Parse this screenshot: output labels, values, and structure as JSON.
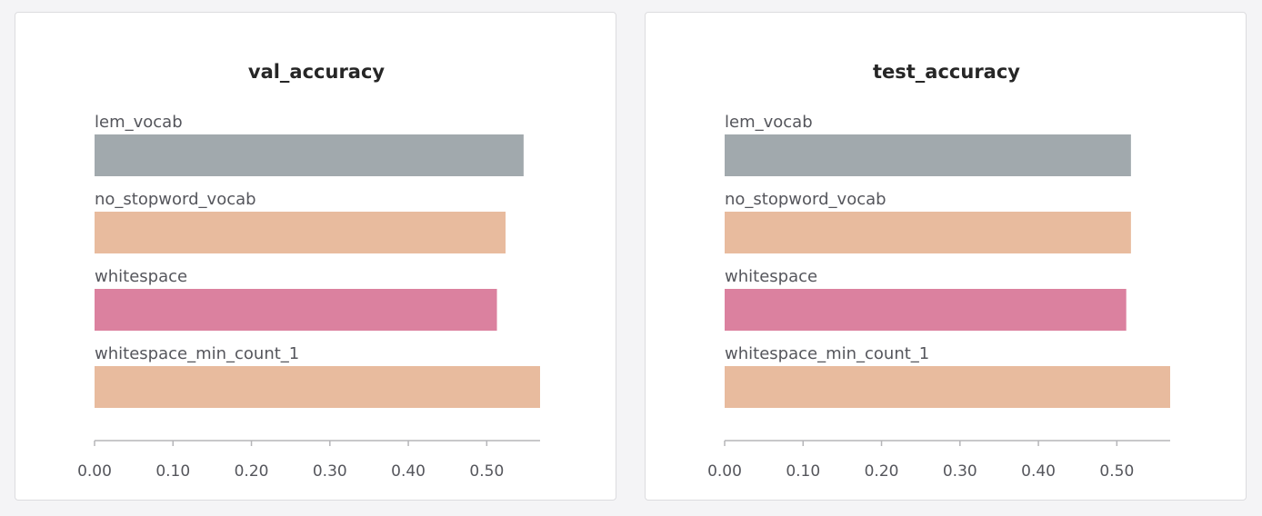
{
  "chart_data": [
    {
      "type": "bar",
      "orientation": "horizontal",
      "title": "val_accuracy",
      "categories": [
        "lem_vocab",
        "no_stopword_vocab",
        "whitespace",
        "whitespace_min_count_1"
      ],
      "values": [
        0.547,
        0.524,
        0.513,
        0.568
      ],
      "colors": [
        "#a1a9ad",
        "#e8bb9e",
        "#db819f",
        "#e8bb9e"
      ],
      "xlim": [
        0,
        0.568
      ],
      "ticks": [
        0,
        0.1,
        0.2,
        0.3,
        0.4,
        0.5
      ],
      "tick_labels": [
        "0.00",
        "0.10",
        "0.20",
        "0.30",
        "0.40",
        "0.50"
      ],
      "xlabel": "",
      "ylabel": "",
      "grid": false,
      "legend": "none"
    },
    {
      "type": "bar",
      "orientation": "horizontal",
      "title": "test_accuracy",
      "categories": [
        "lem_vocab",
        "no_stopword_vocab",
        "whitespace",
        "whitespace_min_count_1"
      ],
      "values": [
        0.518,
        0.518,
        0.512,
        0.568
      ],
      "colors": [
        "#a1a9ad",
        "#e8bb9e",
        "#db819f",
        "#e8bb9e"
      ],
      "xlim": [
        0,
        0.568
      ],
      "ticks": [
        0,
        0.1,
        0.2,
        0.3,
        0.4,
        0.5
      ],
      "tick_labels": [
        "0.00",
        "0.10",
        "0.20",
        "0.30",
        "0.40",
        "0.50"
      ],
      "xlabel": "",
      "ylabel": "",
      "grid": false,
      "legend": "none"
    }
  ]
}
